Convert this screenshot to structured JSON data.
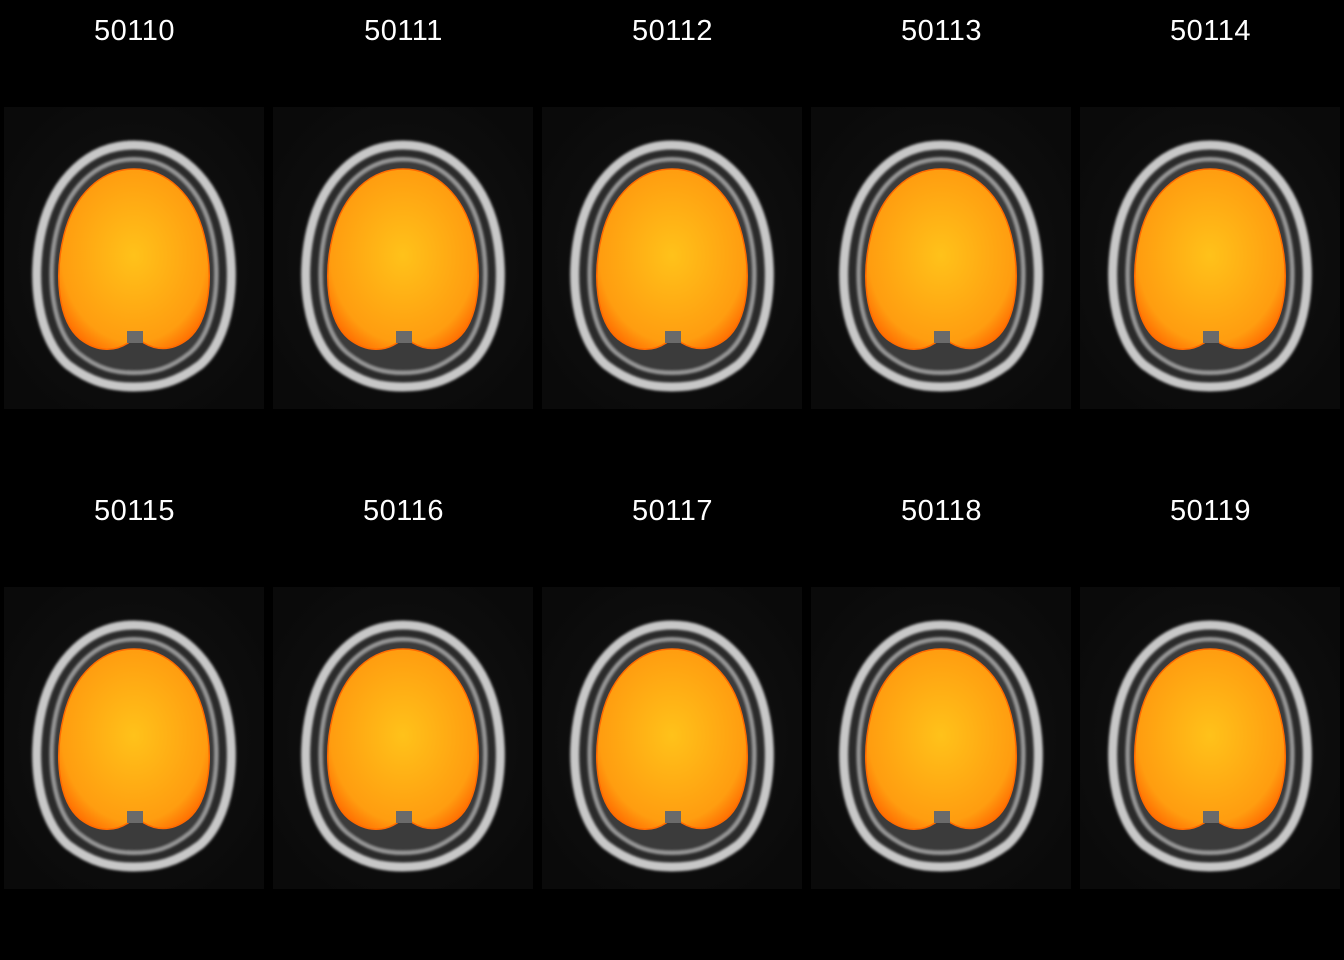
{
  "montage": {
    "subjects": [
      {
        "id": "50110"
      },
      {
        "id": "50111"
      },
      {
        "id": "50112"
      },
      {
        "id": "50113"
      },
      {
        "id": "50114"
      },
      {
        "id": "50115"
      },
      {
        "id": "50116"
      },
      {
        "id": "50117"
      },
      {
        "id": "50118"
      },
      {
        "id": "50119"
      }
    ]
  },
  "colors": {
    "background": "#000000",
    "tile_background": "#0c0c0c",
    "skull_ring": "#c8c8c8",
    "brain_overlay_center": "#ffc21a",
    "brain_overlay_edge": "#ff9d10",
    "brain_overlay_rim": "#ff6a00"
  }
}
